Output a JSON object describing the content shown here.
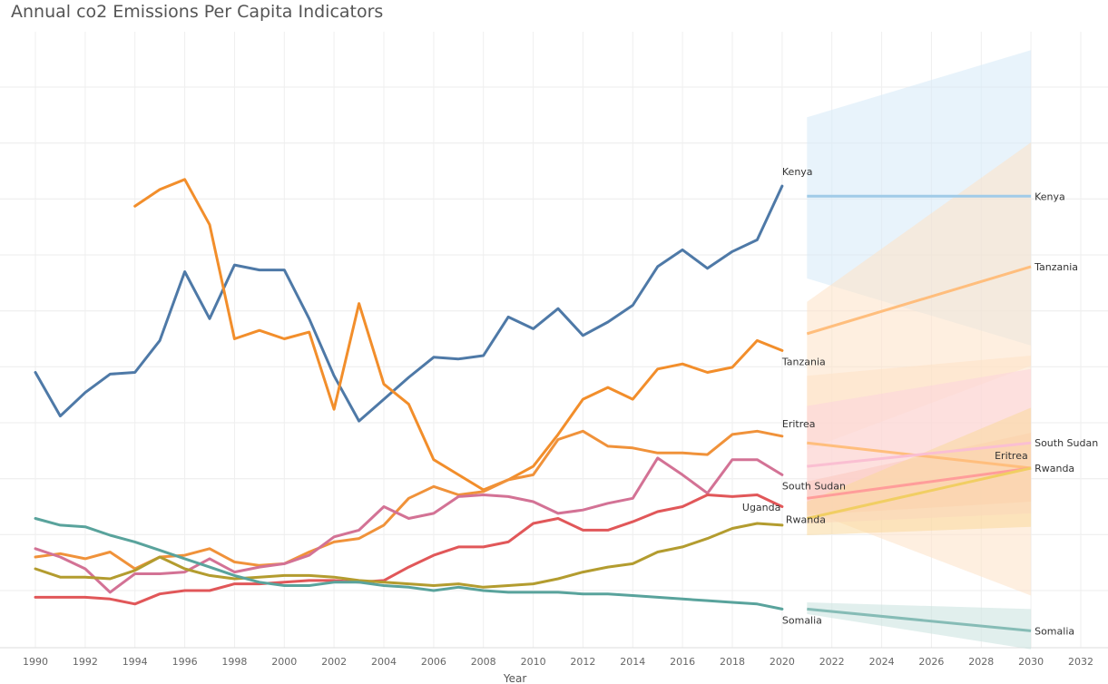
{
  "chart_data": {
    "type": "line",
    "title": "Annual co2 Emissions Per Capita Indicators",
    "xlabel": "Year",
    "ylabel": "",
    "xlim": [
      1989.5,
      2033
    ],
    "ylim": [
      -0.01,
      0.35
    ],
    "grid": true,
    "x_ticks": [
      "1990",
      "1992",
      "1994",
      "1996",
      "1998",
      "2000",
      "2002",
      "2004",
      "2006",
      "2008",
      "2010",
      "2012",
      "2014",
      "2016",
      "2018",
      "2020",
      "2022",
      "2024",
      "2026",
      "2028",
      "2030",
      "2032"
    ],
    "series": [
      {
        "name": "Kenya",
        "color": "#4e79a7",
        "x": [
          1990,
          1991,
          1992,
          1993,
          1994,
          1995,
          1996,
          1997,
          1998,
          1999,
          2000,
          2001,
          2002,
          2003,
          2004,
          2005,
          2006,
          2007,
          2008,
          2009,
          2010,
          2011,
          2012,
          2013,
          2014,
          2015,
          2016,
          2017,
          2018,
          2019,
          2020
        ],
        "values": [
          0.13,
          0.104,
          0.118,
          0.129,
          0.13,
          0.149,
          0.19,
          0.162,
          0.194,
          0.191,
          0.191,
          0.162,
          0.128,
          0.101,
          0.114,
          0.127,
          0.139,
          0.138,
          0.14,
          0.163,
          0.156,
          0.168,
          0.152,
          0.16,
          0.17,
          0.193,
          0.203,
          0.192,
          0.202,
          0.209,
          0.241
        ],
        "end_label": "Kenya",
        "forecast": {
          "x": [
            2021,
            2030
          ],
          "values": [
            0.235,
            0.235
          ],
          "band_lower": [
            0.186,
            0.146
          ],
          "band_upper": [
            0.282,
            0.322
          ],
          "color": "#a0cbe8",
          "band_color": "#d6e9f7",
          "label": "Kenya"
        }
      },
      {
        "name": "Tanzania",
        "color": "#f28e2b",
        "x": [
          1994,
          1995,
          1996,
          1997,
          1998,
          1999,
          2000,
          2001,
          2002,
          2003,
          2004,
          2005,
          2006,
          2007,
          2008,
          2009,
          2010,
          2011,
          2012,
          2013,
          2014,
          2015,
          2016,
          2017,
          2018,
          2019,
          2020
        ],
        "values": [
          0.229,
          0.239,
          0.245,
          0.218,
          0.15,
          0.155,
          0.15,
          0.154,
          0.108,
          0.171,
          0.123,
          0.111,
          0.078,
          0.069,
          0.06,
          0.066,
          0.074,
          0.093,
          0.114,
          0.121,
          0.114,
          0.132,
          0.135,
          0.13,
          0.133,
          0.149,
          0.143
        ],
        "end_label": "Tanzania",
        "forecast": {
          "x": [
            2021,
            2030
          ],
          "values": [
            0.153,
            0.193
          ],
          "band_lower": [
            0.084,
            0.134
          ],
          "band_upper": [
            0.172,
            0.267
          ],
          "color": "#ffbe7d",
          "band_color": "#fde2c6",
          "label": "Tanzania"
        }
      },
      {
        "name": "Eritrea",
        "color": "#f0923a",
        "x": [
          1990,
          1991,
          1992,
          1993,
          1994,
          1995,
          1996,
          1997,
          1998,
          1999,
          2000,
          2001,
          2002,
          2003,
          2004,
          2005,
          2006,
          2007,
          2008,
          2009,
          2010,
          2011,
          2012,
          2013,
          2014,
          2015,
          2016,
          2017,
          2018,
          2019,
          2020
        ],
        "values": [
          0.02,
          0.022,
          0.019,
          0.023,
          0.013,
          0.02,
          0.021,
          0.025,
          0.017,
          0.015,
          0.016,
          0.023,
          0.029,
          0.031,
          0.039,
          0.055,
          0.062,
          0.057,
          0.059,
          0.066,
          0.069,
          0.09,
          0.095,
          0.086,
          0.085,
          0.082,
          0.082,
          0.081,
          0.093,
          0.095,
          0.092
        ],
        "end_label": "Eritrea",
        "forecast": {
          "x": [
            2021,
            2030
          ],
          "values": [
            0.088,
            0.073
          ],
          "band_lower": [
            0.048,
            -0.003
          ],
          "band_upper": [
            0.128,
            0.14
          ],
          "color": "#ffbe7d",
          "band_color": "#fde2c6",
          "label": "Eritrea"
        }
      },
      {
        "name": "South Sudan",
        "color": "#d37295",
        "x": [
          1990,
          1991,
          1992,
          1993,
          1994,
          1995,
          1996,
          1997,
          1998,
          1999,
          2000,
          2001,
          2002,
          2003,
          2004,
          2005,
          2006,
          2007,
          2008,
          2009,
          2010,
          2011,
          2012,
          2013,
          2014,
          2015,
          2016,
          2017,
          2018,
          2019,
          2020
        ],
        "values": [
          0.025,
          0.02,
          0.013,
          -0.001,
          0.01,
          0.01,
          0.011,
          0.019,
          0.011,
          0.014,
          0.016,
          0.021,
          0.032,
          0.036,
          0.05,
          0.043,
          0.046,
          0.056,
          0.057,
          0.056,
          0.053,
          0.046,
          0.048,
          0.052,
          0.055,
          0.079,
          0.069,
          0.058,
          0.078,
          0.078,
          0.069
        ],
        "end_label": "South Sudan",
        "forecast": {
          "x": [
            2021,
            2030
          ],
          "values": [
            0.074,
            0.088
          ],
          "band_lower": [
            0.04,
            0.046
          ],
          "band_upper": [
            0.11,
            0.132
          ],
          "color": "#fabfd2",
          "band_color": "#fbd3dc",
          "label": "South Sudan"
        }
      },
      {
        "name": "Rwanda",
        "color": "#e15759",
        "x": [
          1990,
          1991,
          1992,
          1993,
          1994,
          1995,
          1996,
          1997,
          1998,
          1999,
          2000,
          2001,
          2002,
          2003,
          2004,
          2005,
          2006,
          2007,
          2008,
          2009,
          2010,
          2011,
          2012,
          2013,
          2014,
          2015,
          2016,
          2017,
          2018,
          2019,
          2020
        ],
        "values": [
          -0.004,
          -0.004,
          -0.004,
          -0.005,
          -0.008,
          -0.002,
          0.0,
          0.0,
          0.004,
          0.004,
          0.005,
          0.006,
          0.006,
          0.005,
          0.006,
          0.014,
          0.021,
          0.026,
          0.026,
          0.029,
          0.04,
          0.043,
          0.036,
          0.036,
          0.041,
          0.047,
          0.05,
          0.057,
          0.056,
          0.057,
          0.05
        ],
        "end_label": "Rwanda",
        "forecast": {
          "x": [
            2021,
            2030
          ],
          "values": [
            0.055,
            0.073
          ],
          "band_lower": [
            0.045,
            0.053
          ],
          "band_upper": [
            0.065,
            0.094
          ],
          "color": "#ff9d9a",
          "band_color": "#fcc8c0",
          "label": "Rwanda"
        }
      },
      {
        "name": "Uganda",
        "color": "#b39c2f",
        "x": [
          1990,
          1991,
          1992,
          1993,
          1994,
          1995,
          1996,
          1997,
          1998,
          1999,
          2000,
          2001,
          2002,
          2003,
          2004,
          2005,
          2006,
          2007,
          2008,
          2009,
          2010,
          2011,
          2012,
          2013,
          2014,
          2015,
          2016,
          2017,
          2018,
          2019,
          2020
        ],
        "values": [
          0.013,
          0.008,
          0.008,
          0.007,
          0.012,
          0.02,
          0.013,
          0.009,
          0.007,
          0.008,
          0.009,
          0.009,
          0.008,
          0.006,
          0.005,
          0.004,
          0.003,
          0.004,
          0.002,
          0.003,
          0.004,
          0.007,
          0.011,
          0.014,
          0.016,
          0.023,
          0.026,
          0.031,
          0.037,
          0.04,
          0.039
        ],
        "end_label": "Uganda",
        "forecast": {
          "x": [
            2021,
            2030
          ],
          "values": [
            0.043,
            0.073
          ],
          "band_lower": [
            0.033,
            0.038
          ],
          "band_upper": [
            0.053,
            0.109
          ],
          "color": "#f1ce63",
          "band_color": "#f9d99c",
          "label": ""
        }
      },
      {
        "name": "Somalia",
        "color": "#59a39c",
        "x": [
          1990,
          1991,
          1992,
          1993,
          1994,
          1995,
          1996,
          1997,
          1998,
          1999,
          2000,
          2001,
          2002,
          2003,
          2004,
          2005,
          2006,
          2007,
          2008,
          2009,
          2010,
          2011,
          2012,
          2013,
          2014,
          2015,
          2016,
          2017,
          2018,
          2019,
          2020
        ],
        "values": [
          0.043,
          0.039,
          0.038,
          0.033,
          0.029,
          0.024,
          0.019,
          0.014,
          0.009,
          0.005,
          0.003,
          0.003,
          0.005,
          0.005,
          0.003,
          0.002,
          0.0,
          0.002,
          0.0,
          -0.001,
          -0.001,
          -0.001,
          -0.002,
          -0.002,
          -0.003,
          -0.004,
          -0.005,
          -0.006,
          -0.007,
          -0.008,
          -0.011
        ],
        "end_label": "Somalia",
        "forecast": {
          "x": [
            2021,
            2030
          ],
          "values": [
            -0.011,
            -0.024
          ],
          "band_lower": [
            -0.014,
            -0.035
          ],
          "band_upper": [
            -0.007,
            -0.011
          ],
          "color": "#86bcb6",
          "band_color": "#c9e2df",
          "label": "Somalia"
        }
      }
    ]
  }
}
